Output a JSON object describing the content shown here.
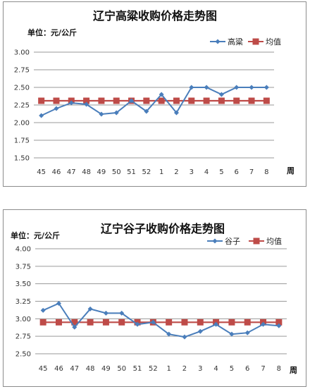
{
  "chart_data": [
    {
      "type": "line",
      "title": "辽宁高粱收购价格走势图",
      "unit_label": "单位：元/公斤",
      "x_end_label": "周",
      "categories": [
        "45",
        "46",
        "47",
        "48",
        "49",
        "50",
        "51",
        "52",
        "1",
        "2",
        "3",
        "4",
        "5",
        "6",
        "7",
        "8"
      ],
      "ylim": [
        1.5,
        3.0
      ],
      "yticks": [
        "1.50",
        "1.75",
        "2.00",
        "2.25",
        "2.50",
        "2.75",
        "3.00"
      ],
      "grid": true,
      "legend_position": "top-right",
      "series": [
        {
          "name": "高粱",
          "color": "#4a7ebb",
          "marker": "diamond",
          "values": [
            2.1,
            2.2,
            2.28,
            2.26,
            2.12,
            2.14,
            2.31,
            2.16,
            2.4,
            2.14,
            2.5,
            2.5,
            2.4,
            2.5,
            2.5,
            2.5
          ]
        },
        {
          "name": "均值",
          "color": "#be4b48",
          "marker": "square",
          "values": [
            2.31,
            2.31,
            2.31,
            2.31,
            2.31,
            2.31,
            2.31,
            2.31,
            2.31,
            2.31,
            2.31,
            2.31,
            2.31,
            2.31,
            2.31,
            2.31
          ]
        }
      ]
    },
    {
      "type": "line",
      "title": "辽宁谷子收购价格走势图",
      "unit_label": "单位：元/公斤",
      "x_end_label": "周",
      "categories": [
        "45",
        "46",
        "47",
        "48",
        "49",
        "50",
        "51",
        "52",
        "1",
        "2",
        "3",
        "4",
        "5",
        "6",
        "7",
        "8"
      ],
      "ylim": [
        2.5,
        4.0
      ],
      "yticks": [
        "2.50",
        "2.75",
        "3.00",
        "3.25",
        "3.50",
        "3.75",
        "4.00"
      ],
      "grid": true,
      "legend_position": "top-right",
      "series": [
        {
          "name": "谷子",
          "color": "#4a7ebb",
          "marker": "diamond",
          "values": [
            3.12,
            3.22,
            2.88,
            3.14,
            3.08,
            3.08,
            2.92,
            2.95,
            2.78,
            2.74,
            2.82,
            2.92,
            2.78,
            2.8,
            2.92,
            2.9
          ]
        },
        {
          "name": "均值",
          "color": "#be4b48",
          "marker": "square",
          "values": [
            2.95,
            2.95,
            2.95,
            2.95,
            2.95,
            2.95,
            2.95,
            2.95,
            2.95,
            2.95,
            2.95,
            2.95,
            2.95,
            2.95,
            2.95,
            2.95
          ]
        }
      ]
    }
  ]
}
